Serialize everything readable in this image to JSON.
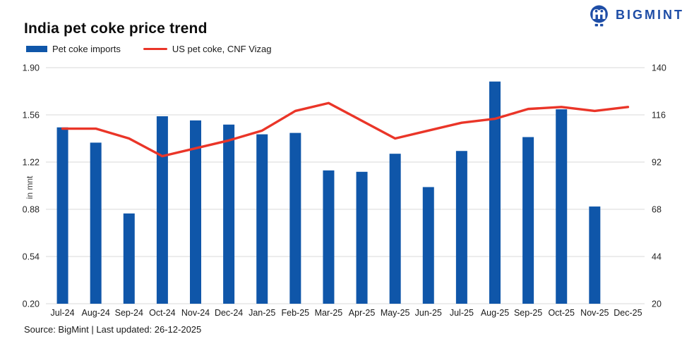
{
  "header": {
    "title": "India pet coke price trend",
    "brand": "BIGMINT"
  },
  "legend": [
    {
      "label": "Pet coke imports",
      "type": "bar",
      "color": "#0f56a9"
    },
    {
      "label": "US pet coke, CNF Vizag",
      "type": "line",
      "color": "#ea3528"
    }
  ],
  "footer": {
    "source_line": "Source: BigMint | Last updated: 26-12-2025"
  },
  "chart_data": {
    "type": "combo",
    "title": "India pet coke price trend",
    "grid": true,
    "legend_position": "top-left",
    "categories": [
      "Jul-24",
      "Aug-24",
      "Sep-24",
      "Oct-24",
      "Nov-24",
      "Dec-24",
      "Jan-25",
      "Feb-25",
      "Mar-25",
      "Apr-25",
      "May-25",
      "Jun-25",
      "Jul-25",
      "Aug-25",
      "Sep-25",
      "Oct-25",
      "Nov-25",
      "Dec-25"
    ],
    "series": [
      {
        "name": "Pet coke imports",
        "type": "bar",
        "axis": "left",
        "color": "#0f56a9",
        "values": [
          1.47,
          1.36,
          0.85,
          1.55,
          1.52,
          1.49,
          1.42,
          1.43,
          1.16,
          1.15,
          1.28,
          1.04,
          1.3,
          1.8,
          1.4,
          1.6,
          0.9,
          null
        ]
      },
      {
        "name": "US pet coke, CNF Vizag",
        "type": "line",
        "axis": "right",
        "color": "#ea3528",
        "values": [
          109,
          109,
          104,
          95,
          99,
          103,
          108,
          118,
          122,
          113,
          104,
          108,
          112,
          114,
          119,
          120,
          118,
          120
        ]
      }
    ],
    "left_axis": {
      "label": "in mnt",
      "min": 0.2,
      "max": 1.9,
      "ticks": [
        "1.90",
        "1.56",
        "1.22",
        "0.88",
        "0.54",
        "0.20"
      ]
    },
    "right_axis": {
      "label": "in USD/t",
      "min": 20,
      "max": 140,
      "ticks": [
        "140",
        "116",
        "92",
        "68",
        "44",
        "20"
      ]
    }
  }
}
